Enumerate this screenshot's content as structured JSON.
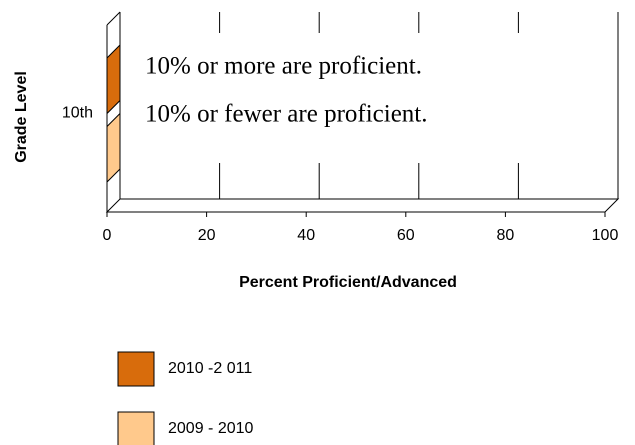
{
  "chart_data": {
    "type": "bar3d_horizontal",
    "categories": [
      "10th"
    ],
    "series": [
      {
        "name": "2010 -2 011",
        "color": "#d86c0c",
        "values": [
          0
        ]
      },
      {
        "name": "2009 - 2010",
        "color": "#ffc98c",
        "values": [
          0
        ]
      }
    ],
    "xlabel": "Percent Proficient/Advanced",
    "ylabel": "Grade Level",
    "xlim": [
      0,
      100
    ],
    "xticks": [
      0,
      20,
      40,
      60,
      80,
      100
    ],
    "grid": true,
    "annotations": [
      "10% or more are proficient.",
      "10% or fewer are proficient."
    ]
  }
}
